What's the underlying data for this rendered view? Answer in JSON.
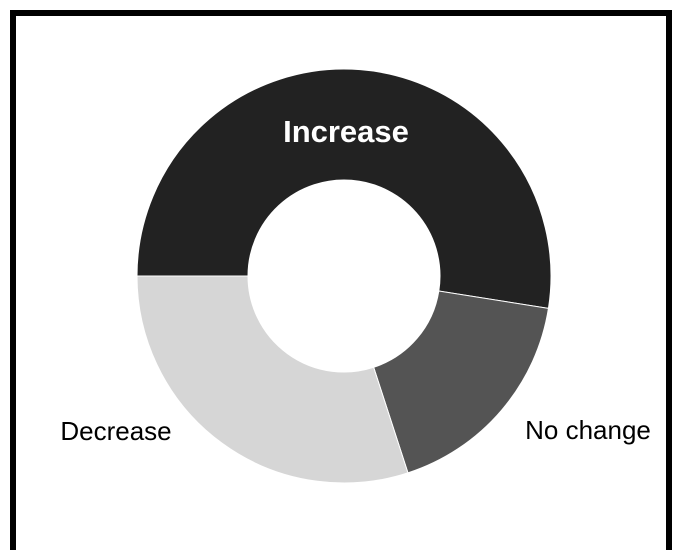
{
  "chart_data": {
    "type": "pie",
    "donut": true,
    "title": "",
    "categories": [
      "Increase",
      "No change",
      "Decrease"
    ],
    "values": [
      52.5,
      17.5,
      30
    ],
    "start_angle_deg": 180,
    "direction": "clockwise",
    "colors": [
      "#222222",
      "#545454",
      "#d6d6d6"
    ],
    "label_colors": [
      "#ffffff",
      "#000000",
      "#000000"
    ],
    "label_weights": [
      "bold",
      "normal",
      "normal"
    ],
    "label_placement": [
      "inside",
      "outside",
      "outside"
    ],
    "legend": "none",
    "slice_border_color": "#ffffff"
  }
}
